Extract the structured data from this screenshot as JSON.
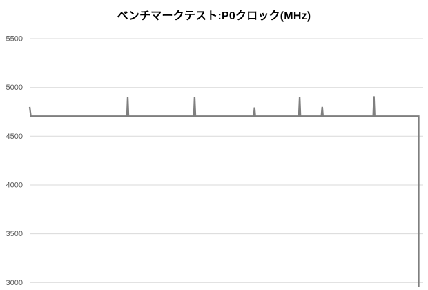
{
  "chart": {
    "title": "ベンチマークテスト:P0クロック(MHz)"
  },
  "chart_data": {
    "type": "line",
    "title": "ベンチマークテスト:P0クロック(MHz)",
    "xlabel": "",
    "ylabel": "",
    "ylim": [
      3000,
      5500
    ],
    "yticks": [
      5500,
      5000,
      4500,
      4000,
      3500,
      3000
    ],
    "ytick_interval": 500,
    "x_axis_labels_visible": false,
    "grid": "horizontal",
    "legend": "none",
    "baseline_mhz": 4705,
    "spike_peaks_mhz": [
      4800,
      4905,
      4905,
      4795,
      4905,
      4800,
      4910
    ],
    "final_drop_mhz": 2960,
    "series": [
      {
        "name": "P0クロック(MHz)",
        "color": "#7f7f7f",
        "points": [
          [
            0.0,
            4800
          ],
          [
            0.003,
            4705
          ],
          [
            0.25,
            4705
          ],
          [
            0.252,
            4905
          ],
          [
            0.254,
            4705
          ],
          [
            0.422,
            4705
          ],
          [
            0.424,
            4905
          ],
          [
            0.426,
            4705
          ],
          [
            0.576,
            4705
          ],
          [
            0.578,
            4795
          ],
          [
            0.58,
            4705
          ],
          [
            0.692,
            4705
          ],
          [
            0.694,
            4905
          ],
          [
            0.696,
            4705
          ],
          [
            0.75,
            4705
          ],
          [
            0.752,
            4800
          ],
          [
            0.754,
            4705
          ],
          [
            0.883,
            4705
          ],
          [
            0.885,
            4910
          ],
          [
            0.887,
            4705
          ],
          [
            1.0,
            4705
          ],
          [
            1.0,
            2960
          ]
        ]
      }
    ],
    "colors": {
      "line": "#7f7f7f",
      "gridline": "#d9d9d9",
      "tick_label": "#595959",
      "title": "#000000",
      "background": "#ffffff"
    }
  }
}
